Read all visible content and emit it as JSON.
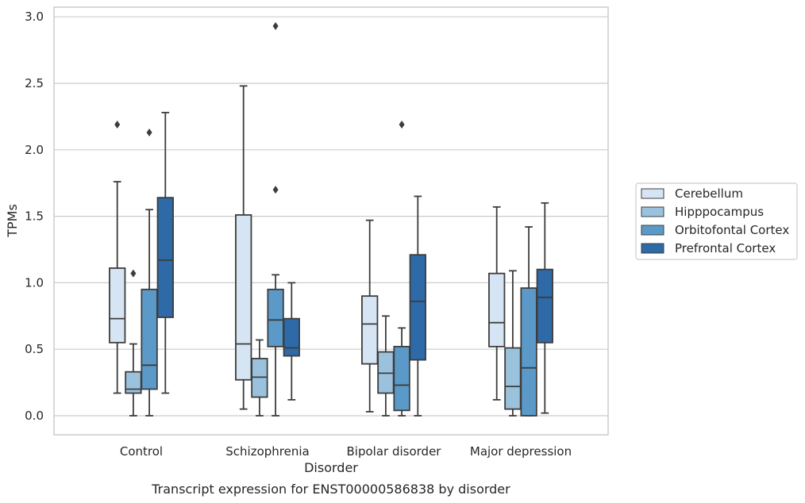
{
  "caption": "Transcript expression for ENST00000586838 by disorder",
  "chart_data": {
    "type": "boxplot",
    "xlabel": "Disorder",
    "ylabel": "TPMs",
    "ylim": [
      -0.14,
      3.08
    ],
    "yticks": [
      "0.0",
      "0.5",
      "1.0",
      "1.5",
      "2.0",
      "2.5",
      "3.0"
    ],
    "grid": "horizontal",
    "legend_position": "right",
    "categories": [
      "Control",
      "Schizophrenia",
      "Bipolar disorder",
      "Major depression"
    ],
    "series": [
      {
        "name": "Cerebellum",
        "color": "#d6e5f3",
        "boxes": [
          {
            "whislo": 0.17,
            "q1": 0.55,
            "med": 0.73,
            "q3": 1.11,
            "whishi": 1.76,
            "fliers": [
              2.19
            ]
          },
          {
            "whislo": 0.05,
            "q1": 0.27,
            "med": 0.54,
            "q3": 1.51,
            "whishi": 2.48,
            "fliers": []
          },
          {
            "whislo": 0.03,
            "q1": 0.39,
            "med": 0.69,
            "q3": 0.9,
            "whishi": 1.47,
            "fliers": []
          },
          {
            "whislo": 0.12,
            "q1": 0.52,
            "med": 0.7,
            "q3": 1.07,
            "whishi": 1.57,
            "fliers": []
          }
        ]
      },
      {
        "name": "Hipppocampus",
        "color": "#9bc2dd",
        "boxes": [
          {
            "whislo": 0.0,
            "q1": 0.17,
            "med": 0.2,
            "q3": 0.33,
            "whishi": 0.54,
            "fliers": [
              1.07
            ]
          },
          {
            "whislo": 0.0,
            "q1": 0.14,
            "med": 0.29,
            "q3": 0.43,
            "whishi": 0.57,
            "fliers": []
          },
          {
            "whislo": 0.0,
            "q1": 0.17,
            "med": 0.32,
            "q3": 0.48,
            "whishi": 0.75,
            "fliers": []
          },
          {
            "whislo": 0.0,
            "q1": 0.05,
            "med": 0.22,
            "q3": 0.51,
            "whishi": 1.09,
            "fliers": []
          }
        ]
      },
      {
        "name": "Orbitofontal Cortex",
        "color": "#5b9ac8",
        "boxes": [
          {
            "whislo": 0.0,
            "q1": 0.2,
            "med": 0.38,
            "q3": 0.95,
            "whishi": 1.55,
            "fliers": [
              2.13
            ]
          },
          {
            "whislo": 0.0,
            "q1": 0.52,
            "med": 0.72,
            "q3": 0.95,
            "whishi": 1.06,
            "fliers": [
              1.7,
              2.93
            ]
          },
          {
            "whislo": 0.0,
            "q1": 0.04,
            "med": 0.23,
            "q3": 0.52,
            "whishi": 0.66,
            "fliers": [
              2.19
            ]
          },
          {
            "whislo": 0.0,
            "q1": 0.0,
            "med": 0.36,
            "q3": 0.96,
            "whishi": 1.42,
            "fliers": []
          }
        ]
      },
      {
        "name": "Prefrontal Cortex",
        "color": "#2d6aa7",
        "boxes": [
          {
            "whislo": 0.17,
            "q1": 0.74,
            "med": 1.17,
            "q3": 1.64,
            "whishi": 2.28,
            "fliers": []
          },
          {
            "whislo": 0.12,
            "q1": 0.45,
            "med": 0.51,
            "q3": 0.73,
            "whishi": 1.0,
            "fliers": []
          },
          {
            "whislo": 0.0,
            "q1": 0.42,
            "med": 0.86,
            "q3": 1.21,
            "whishi": 1.65,
            "fliers": []
          },
          {
            "whislo": 0.02,
            "q1": 0.55,
            "med": 0.89,
            "q3": 1.1,
            "whishi": 1.6,
            "fliers": []
          }
        ]
      }
    ]
  }
}
